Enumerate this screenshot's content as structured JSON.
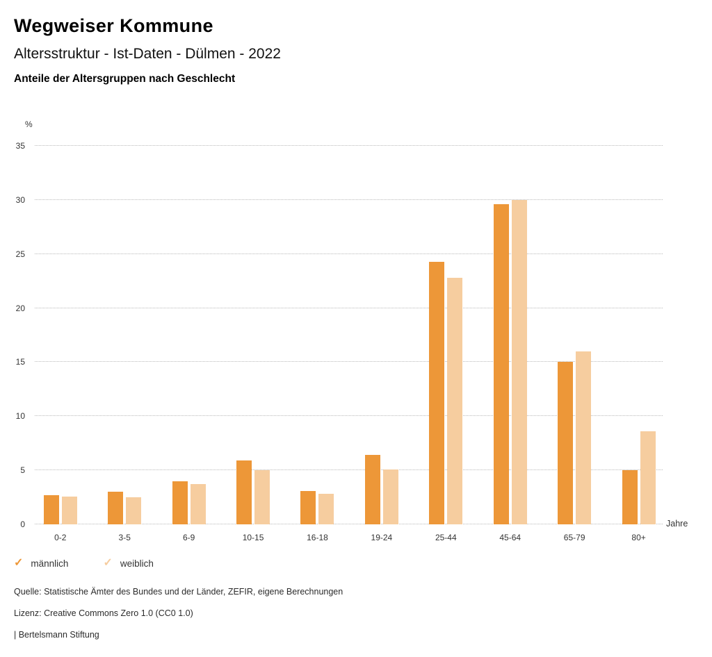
{
  "header": {
    "title": "Wegweiser Kommune",
    "subtitle": "Altersstruktur - Ist-Daten - Dülmen - 2022",
    "heading": "Anteile der Altersgruppen nach Geschlecht"
  },
  "chart_data": {
    "type": "bar",
    "title": "Anteile der Altersgruppen nach Geschlecht",
    "y_unit_label": "%",
    "x_unit_label": "Jahre",
    "categories": [
      "0-2",
      "3-5",
      "6-9",
      "10-15",
      "16-18",
      "19-24",
      "25-44",
      "45-64",
      "65-79",
      "80+"
    ],
    "series": [
      {
        "name": "männlich",
        "color": "#ed9738",
        "values": [
          2.7,
          3.0,
          4.0,
          5.9,
          3.1,
          6.4,
          24.3,
          29.6,
          15.0,
          5.0
        ]
      },
      {
        "name": "weiblich",
        "color": "#f6cd9f",
        "values": [
          2.6,
          2.5,
          3.7,
          5.0,
          2.8,
          5.1,
          22.8,
          30.0,
          16.0,
          8.6
        ]
      }
    ],
    "y_ticks": [
      0,
      5,
      10,
      15,
      20,
      25,
      30,
      35
    ],
    "ylim": [
      0,
      35
    ],
    "grid": "horizontal-dotted",
    "legend_position": "bottom-left"
  },
  "legend": {
    "check_glyph": "✓",
    "items": [
      {
        "label": "männlich",
        "color": "#ed9738"
      },
      {
        "label": "weiblich",
        "color": "#f6cd9f"
      }
    ]
  },
  "footer": {
    "source": "Quelle: Statistische Ämter des Bundes und der Länder, ZEFIR, eigene Berechnungen",
    "license": "Lizenz: Creative Commons Zero 1.0 (CC0 1.0)",
    "attribution": "| Bertelsmann Stiftung"
  }
}
